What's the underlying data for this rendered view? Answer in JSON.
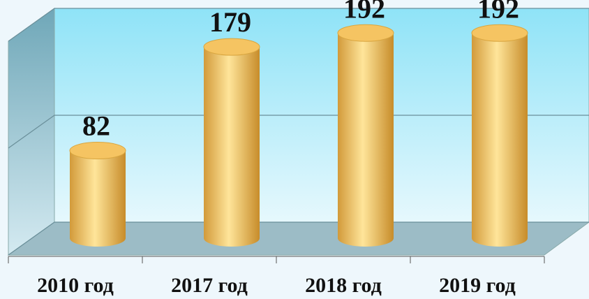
{
  "chart_data": {
    "type": "bar",
    "categories": [
      "2010 год",
      "2017 год",
      "2018 год",
      "2019 год"
    ],
    "values": [
      82,
      179,
      192,
      192
    ],
    "color": "#f5c462",
    "ylim": [
      0,
      200
    ],
    "yticks": [
      0,
      100,
      200
    ],
    "grid": true
  }
}
